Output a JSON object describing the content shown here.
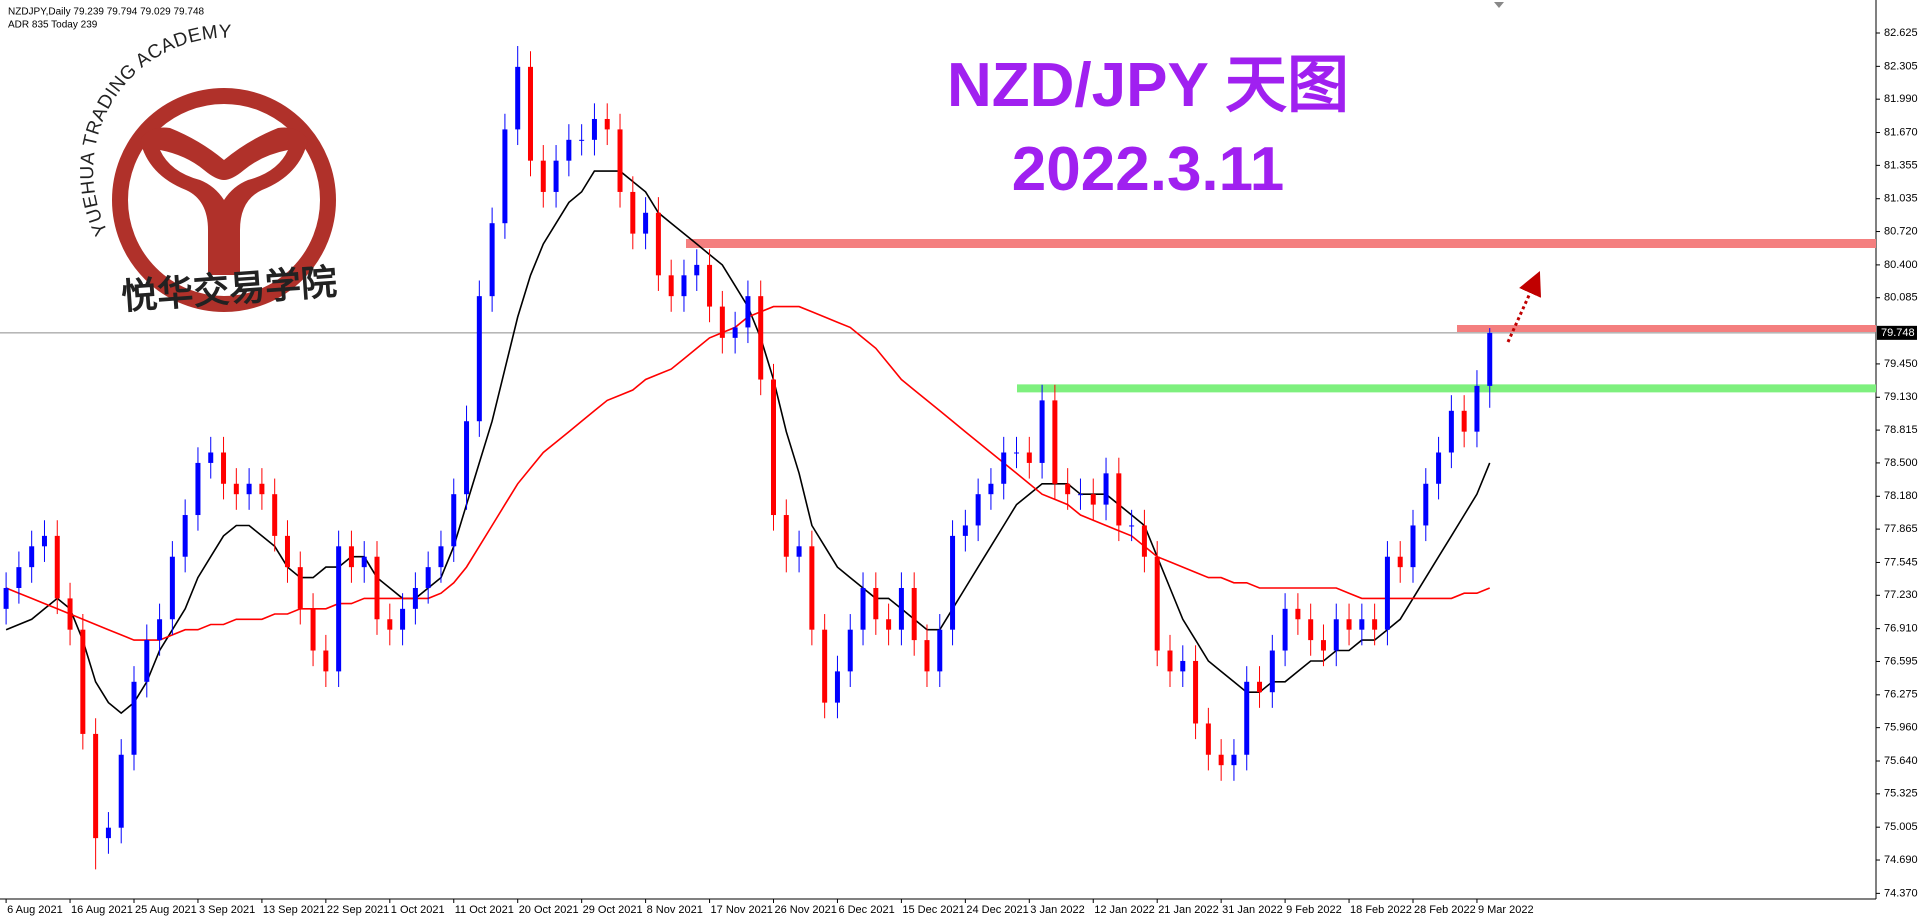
{
  "chart_data": {
    "type": "candlestick",
    "info_lines": [
      "NZDJPY,Daily  79.239 79.794 79.029 79.748",
      "ADR 835  Today 239"
    ],
    "title": "NZD/JPY 天图",
    "subtitle": "2022.3.11",
    "logo_text": "YUEHUA TRADING ACADEMY",
    "logo_text_cn": "悦华交易学院",
    "categories": [
      "6 Aug 2021",
      null,
      null,
      null,
      null,
      "16 Aug 2021",
      null,
      null,
      null,
      null,
      "25 Aug 2021",
      null,
      null,
      null,
      null,
      "3 Sep 2021",
      null,
      null,
      null,
      null,
      "13 Sep 2021",
      null,
      null,
      null,
      null,
      "22 Sep 2021",
      null,
      null,
      null,
      null,
      "1 Oct 2021",
      null,
      null,
      null,
      null,
      "11 Oct 2021",
      null,
      null,
      null,
      null,
      "20 Oct 2021",
      null,
      null,
      null,
      null,
      "29 Oct 2021",
      null,
      null,
      null,
      null,
      "8 Nov 2021",
      null,
      null,
      null,
      null,
      "17 Nov 2021",
      null,
      null,
      null,
      null,
      "26 Nov 2021",
      null,
      null,
      null,
      null,
      "6 Dec 2021",
      null,
      null,
      null,
      null,
      "15 Dec 2021",
      null,
      null,
      null,
      null,
      "24 Dec 2021",
      null,
      null,
      null,
      null,
      "3 Jan 2022",
      null,
      null,
      null,
      null,
      "12 Jan 2022",
      null,
      null,
      null,
      null,
      "21 Jan 2022",
      null,
      null,
      null,
      null,
      "31 Jan 2022",
      null,
      null,
      null,
      null,
      "9 Feb 2022",
      null,
      null,
      null,
      null,
      "18 Feb 2022",
      null,
      null,
      null,
      null,
      "28 Feb 2022",
      null,
      null,
      null,
      null,
      "9 Mar 2022",
      null
    ],
    "open": [
      77.1,
      77.3,
      77.5,
      77.7,
      77.8,
      77.2,
      76.9,
      75.9,
      74.9,
      75.0,
      75.7,
      76.4,
      76.8,
      77.0,
      77.6,
      78.0,
      78.5,
      78.6,
      78.3,
      78.2,
      78.3,
      78.2,
      77.8,
      77.5,
      77.1,
      76.7,
      76.5,
      77.7,
      77.5,
      77.6,
      77.0,
      76.9,
      77.1,
      77.3,
      77.5,
      77.7,
      78.2,
      78.9,
      80.1,
      80.8,
      81.7,
      82.3,
      81.4,
      81.1,
      81.4,
      81.6,
      81.6,
      81.8,
      81.7,
      81.1,
      80.7,
      80.9,
      80.3,
      80.1,
      80.3,
      80.4,
      80.0,
      79.7,
      79.8,
      80.1,
      79.3,
      78.0,
      77.6,
      77.7,
      76.9,
      76.2,
      76.5,
      76.9,
      77.3,
      77.0,
      76.9,
      77.3,
      76.8,
      76.5,
      76.9,
      77.8,
      77.9,
      78.2,
      78.3,
      78.6,
      78.6,
      78.5,
      79.1,
      78.3,
      78.2,
      78.2,
      78.1,
      78.4,
      77.9,
      77.9,
      77.6,
      76.7,
      76.5,
      76.6,
      76.0,
      75.7,
      75.6,
      75.7,
      76.4,
      76.3,
      76.7,
      77.1,
      77.0,
      76.8,
      76.7,
      77.0,
      76.9,
      77.0,
      76.9,
      77.6,
      77.5,
      77.9,
      78.3,
      78.6,
      79.0,
      78.8,
      79.239
    ],
    "high": [
      77.45,
      77.65,
      77.85,
      77.95,
      77.95,
      77.35,
      77.05,
      76.05,
      75.15,
      75.85,
      76.55,
      76.95,
      77.15,
      77.75,
      78.15,
      78.65,
      78.75,
      78.75,
      78.45,
      78.45,
      78.45,
      78.35,
      77.95,
      77.65,
      77.25,
      76.85,
      77.85,
      77.85,
      77.75,
      77.75,
      77.15,
      77.25,
      77.45,
      77.65,
      77.85,
      78.35,
      79.05,
      80.25,
      80.95,
      81.85,
      82.5,
      82.45,
      81.55,
      81.55,
      81.75,
      81.75,
      81.95,
      81.95,
      81.85,
      81.25,
      81.05,
      81.05,
      80.45,
      80.45,
      80.55,
      80.55,
      80.15,
      79.95,
      80.25,
      80.25,
      79.45,
      78.15,
      77.85,
      77.85,
      77.05,
      76.65,
      77.05,
      77.45,
      77.45,
      77.15,
      77.45,
      77.45,
      76.95,
      77.05,
      77.95,
      78.05,
      78.35,
      78.45,
      78.75,
      78.75,
      78.75,
      79.25,
      79.25,
      78.45,
      78.35,
      78.35,
      78.55,
      78.55,
      78.05,
      78.05,
      77.75,
      76.85,
      76.75,
      76.75,
      76.15,
      75.85,
      75.85,
      76.55,
      76.55,
      76.85,
      77.25,
      77.25,
      77.15,
      76.95,
      77.15,
      77.15,
      77.15,
      77.15,
      77.75,
      77.75,
      78.05,
      78.45,
      78.75,
      79.15,
      79.15,
      79.39,
      79.794
    ],
    "low": [
      76.95,
      77.15,
      77.35,
      77.55,
      77.05,
      76.75,
      75.75,
      74.6,
      74.75,
      74.85,
      75.55,
      76.25,
      76.65,
      76.85,
      77.45,
      77.85,
      78.35,
      78.15,
      78.05,
      78.05,
      78.05,
      77.65,
      77.35,
      76.95,
      76.55,
      76.35,
      76.35,
      77.35,
      77.35,
      76.85,
      76.75,
      76.75,
      76.95,
      77.15,
      77.35,
      77.55,
      78.05,
      78.75,
      79.95,
      80.65,
      81.55,
      81.25,
      80.95,
      80.95,
      81.25,
      81.45,
      81.45,
      81.55,
      80.95,
      80.55,
      80.55,
      80.15,
      79.95,
      79.95,
      80.15,
      79.85,
      79.55,
      79.55,
      79.65,
      79.15,
      77.85,
      77.45,
      77.45,
      76.75,
      76.05,
      76.05,
      76.35,
      76.75,
      76.85,
      76.75,
      76.75,
      76.65,
      76.35,
      76.35,
      76.75,
      77.65,
      77.75,
      78.05,
      78.15,
      78.45,
      78.35,
      78.35,
      78.15,
      78.05,
      78.05,
      77.95,
      77.95,
      77.75,
      77.75,
      77.45,
      76.55,
      76.35,
      76.35,
      75.85,
      75.55,
      75.45,
      75.45,
      75.55,
      76.15,
      76.15,
      76.55,
      76.85,
      76.65,
      76.55,
      76.55,
      76.75,
      76.75,
      76.75,
      76.75,
      77.35,
      77.35,
      77.75,
      78.15,
      78.45,
      78.65,
      78.65,
      79.029
    ],
    "close": [
      77.3,
      77.5,
      77.7,
      77.8,
      77.2,
      76.9,
      75.9,
      74.9,
      75.0,
      75.7,
      76.4,
      76.8,
      77.0,
      77.6,
      78.0,
      78.5,
      78.6,
      78.3,
      78.2,
      78.3,
      78.2,
      77.8,
      77.5,
      77.1,
      76.7,
      76.5,
      77.7,
      77.5,
      77.6,
      77.0,
      76.9,
      77.1,
      77.3,
      77.5,
      77.7,
      78.2,
      78.9,
      80.1,
      80.8,
      81.7,
      82.3,
      81.4,
      81.1,
      81.4,
      81.6,
      81.6,
      81.8,
      81.7,
      81.1,
      80.7,
      80.9,
      80.3,
      80.1,
      80.3,
      80.4,
      80.0,
      79.7,
      79.8,
      80.1,
      79.3,
      78.0,
      77.6,
      77.7,
      76.9,
      76.2,
      76.5,
      76.9,
      77.3,
      77.0,
      76.9,
      77.3,
      76.8,
      76.5,
      76.9,
      77.8,
      77.9,
      78.2,
      78.3,
      78.6,
      78.6,
      78.5,
      79.1,
      78.3,
      78.2,
      78.2,
      78.1,
      78.4,
      77.9,
      77.9,
      77.6,
      76.7,
      76.5,
      76.6,
      76.0,
      75.7,
      75.6,
      75.7,
      76.4,
      76.3,
      76.7,
      77.1,
      77.0,
      76.8,
      76.7,
      77.0,
      76.9,
      77.0,
      76.9,
      77.6,
      77.5,
      77.9,
      78.3,
      78.6,
      79.0,
      78.8,
      79.239,
      79.748
    ],
    "up_color": "#0000ff",
    "down_color": "#ff0000",
    "lines": [
      {
        "color": "#000000",
        "values": [
          76.9,
          76.95,
          77.0,
          77.1,
          77.2,
          77.1,
          76.8,
          76.4,
          76.2,
          76.1,
          76.2,
          76.4,
          76.7,
          76.9,
          77.1,
          77.4,
          77.6,
          77.8,
          77.9,
          77.9,
          77.8,
          77.7,
          77.5,
          77.4,
          77.4,
          77.5,
          77.5,
          77.6,
          77.6,
          77.4,
          77.3,
          77.2,
          77.2,
          77.3,
          77.4,
          77.7,
          78.1,
          78.5,
          78.9,
          79.4,
          79.9,
          80.3,
          80.6,
          80.8,
          81.0,
          81.1,
          81.3,
          81.3,
          81.3,
          81.2,
          81.1,
          80.9,
          80.8,
          80.7,
          80.6,
          80.5,
          80.4,
          80.2,
          80.0,
          79.7,
          79.3,
          78.8,
          78.4,
          77.9,
          77.7,
          77.5,
          77.4,
          77.3,
          77.2,
          77.2,
          77.1,
          77.0,
          76.9,
          76.9,
          77.1,
          77.3,
          77.5,
          77.7,
          77.9,
          78.1,
          78.2,
          78.3,
          78.3,
          78.3,
          78.2,
          78.2,
          78.2,
          78.1,
          78.0,
          77.9,
          77.6,
          77.3,
          77.0,
          76.8,
          76.6,
          76.5,
          76.4,
          76.3,
          76.3,
          76.4,
          76.4,
          76.5,
          76.6,
          76.6,
          76.7,
          76.7,
          76.8,
          76.8,
          76.9,
          77.0,
          77.2,
          77.4,
          77.6,
          77.8,
          78.0,
          78.2,
          78.5
        ]
      },
      {
        "color": "#ff0000",
        "values": [
          77.3,
          77.25,
          77.2,
          77.15,
          77.1,
          77.05,
          77.0,
          76.95,
          76.9,
          76.85,
          76.8,
          76.8,
          76.8,
          76.85,
          76.9,
          76.9,
          76.95,
          76.95,
          77.0,
          77.0,
          77.0,
          77.05,
          77.05,
          77.1,
          77.1,
          77.1,
          77.15,
          77.15,
          77.2,
          77.2,
          77.2,
          77.2,
          77.2,
          77.2,
          77.25,
          77.35,
          77.5,
          77.7,
          77.9,
          78.1,
          78.3,
          78.45,
          78.6,
          78.7,
          78.8,
          78.9,
          79.0,
          79.1,
          79.15,
          79.2,
          79.3,
          79.35,
          79.4,
          79.5,
          79.6,
          79.7,
          79.75,
          79.8,
          79.9,
          79.95,
          80.0,
          80.0,
          80.0,
          79.95,
          79.9,
          79.85,
          79.8,
          79.7,
          79.6,
          79.45,
          79.3,
          79.2,
          79.1,
          79.0,
          78.9,
          78.8,
          78.7,
          78.6,
          78.5,
          78.4,
          78.3,
          78.2,
          78.15,
          78.1,
          78.0,
          77.95,
          77.9,
          77.85,
          77.8,
          77.7,
          77.6,
          77.55,
          77.5,
          77.45,
          77.4,
          77.4,
          77.35,
          77.35,
          77.3,
          77.3,
          77.3,
          77.3,
          77.3,
          77.3,
          77.3,
          77.25,
          77.2,
          77.2,
          77.2,
          77.2,
          77.2,
          77.2,
          77.2,
          77.2,
          77.25,
          77.25,
          77.3
        ]
      }
    ],
    "levels": [
      {
        "value": 80.605,
        "color": "#f47f7f"
      },
      {
        "value": 79.79,
        "color": "#f47f7f"
      },
      {
        "value": 79.215,
        "color": "#7ef07e"
      }
    ],
    "ylim": [
      74.316,
      82.884
    ],
    "yticks": [
      82.625,
      82.305,
      {
        "value": 81.99,
        "label": "81.990"
      },
      {
        "value": 81.67,
        "label": "81.670"
      },
      81.355,
      81.035,
      {
        "value": 80.72,
        "label": "80.720"
      },
      {
        "value": 80.4,
        "label": "80.400"
      },
      80.085,
      {
        "value": 79.45,
        "label": "79.450"
      },
      {
        "value": 79.13,
        "label": "79.130"
      },
      78.815,
      {
        "value": 78.5,
        "label": "78.500"
      },
      {
        "value": 78.18,
        "label": "78.180"
      },
      77.865,
      77.545,
      {
        "value": 77.23,
        "label": "77.230"
      },
      {
        "value": 76.91,
        "label": "76.910"
      },
      76.595,
      76.275,
      {
        "value": 75.96,
        "label": "75.960"
      },
      {
        "value": 75.64,
        "label": "75.640"
      },
      75.325,
      75.005,
      {
        "value": 74.69,
        "label": "74.690"
      },
      {
        "value": 74.37,
        "label": "74.370"
      }
    ],
    "grid": false
  }
}
